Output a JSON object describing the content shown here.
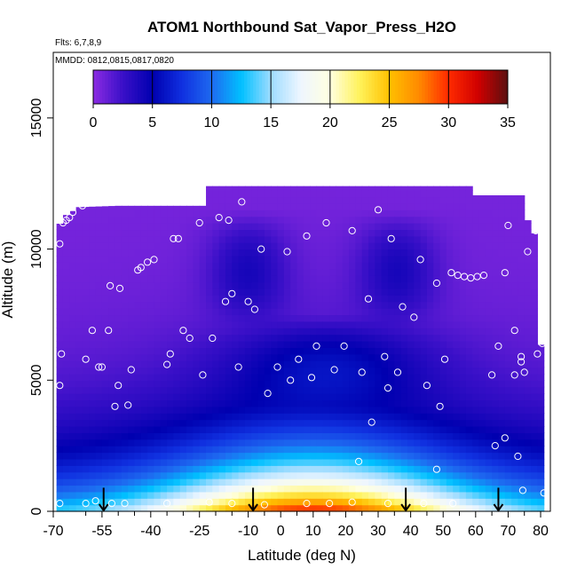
{
  "chart_data": {
    "type": "heatmap",
    "title": "ATOM1 Northbound Sat_Vapor_Press_H2O",
    "flights_note": "Flts: 6,7,8,9",
    "dates_note": "MMDD: 0812,0815,0817,0820",
    "xlabel": "Latitude (deg N)",
    "ylabel": "Altitude (m)",
    "xlim": [
      -70,
      83
    ],
    "ylim": [
      0,
      17500
    ],
    "x_ticks": [
      {
        "value": -70,
        "label": "-70"
      },
      {
        "value": -55,
        "label": "-55"
      },
      {
        "value": -40,
        "label": "-40"
      },
      {
        "value": -25,
        "label": "-25"
      },
      {
        "value": -10,
        "label": "-10"
      },
      {
        "value": 0,
        "label": "0"
      },
      {
        "value": 10,
        "label": "10"
      },
      {
        "value": 20,
        "label": "20"
      },
      {
        "value": 30,
        "label": "30"
      },
      {
        "value": 40,
        "label": "40"
      },
      {
        "value": 50,
        "label": "50"
      },
      {
        "value": 60,
        "label": "60"
      },
      {
        "value": 70,
        "label": "70"
      },
      {
        "value": 80,
        "label": "80"
      }
    ],
    "x_minor_ticks": [
      -60,
      -50,
      -45,
      -35,
      -30,
      -20,
      -15,
      -5,
      5,
      15,
      25,
      35,
      45,
      55,
      65,
      75
    ],
    "y_ticks": [
      {
        "value": 0,
        "label": "0"
      },
      {
        "value": 5000,
        "label": "5000"
      },
      {
        "value": 10000,
        "label": "10000"
      },
      {
        "value": 15000,
        "label": "15000"
      }
    ],
    "colorbar": {
      "min": 0,
      "max": 35,
      "ticks": [
        {
          "value": 0,
          "label": "0"
        },
        {
          "value": 5,
          "label": "5"
        },
        {
          "value": 10,
          "label": "10"
        },
        {
          "value": 15,
          "label": "15"
        },
        {
          "value": 20,
          "label": "20"
        },
        {
          "value": 25,
          "label": "25"
        },
        {
          "value": 30,
          "label": "30"
        },
        {
          "value": 35,
          "label": "35"
        }
      ],
      "stops": [
        {
          "value": 0,
          "color": "#8B2BE2"
        },
        {
          "value": 2.5,
          "color": "#3A10C8"
        },
        {
          "value": 5,
          "color": "#0000B0"
        },
        {
          "value": 7.5,
          "color": "#1030E0"
        },
        {
          "value": 10,
          "color": "#1E6AF0"
        },
        {
          "value": 12.5,
          "color": "#00C0FF"
        },
        {
          "value": 15,
          "color": "#9EDCFF"
        },
        {
          "value": 17.5,
          "color": "#EEF6FF"
        },
        {
          "value": 20,
          "color": "#FFFFE0"
        },
        {
          "value": 22.5,
          "color": "#FFF25A"
        },
        {
          "value": 25,
          "color": "#FFC000"
        },
        {
          "value": 27.5,
          "color": "#FF8A00"
        },
        {
          "value": 30,
          "color": "#FF2A00"
        },
        {
          "value": 32.5,
          "color": "#D00000"
        },
        {
          "value": 35,
          "color": "#5A1010"
        }
      ]
    },
    "coverage_top": [
      {
        "lat": -69,
        "alt": 10800
      },
      {
        "lat": -66,
        "alt": 11300
      },
      {
        "lat": -62,
        "alt": 11600
      },
      {
        "lat": -50,
        "alt": 11650
      },
      {
        "lat": -24,
        "alt": 11650
      },
      {
        "lat": -23,
        "alt": 12400
      },
      {
        "lat": 38,
        "alt": 12400
      },
      {
        "lat": 38.5,
        "alt": 12950
      },
      {
        "lat": 39,
        "alt": 12400
      },
      {
        "lat": 58,
        "alt": 12400
      },
      {
        "lat": 58,
        "alt": 12050
      },
      {
        "lat": 74,
        "alt": 12050
      },
      {
        "lat": 76,
        "alt": 11100
      },
      {
        "lat": 78,
        "alt": 10600
      },
      {
        "lat": 79,
        "alt": 6400
      },
      {
        "lat": 81,
        "alt": 6300
      },
      {
        "lat": 81,
        "alt": 400
      },
      {
        "lat": 76,
        "alt": 400
      },
      {
        "lat": 76,
        "alt": 0
      }
    ],
    "field_model": {
      "surface_peak_lat": 10,
      "surface_peak_value": 30.5,
      "surface_width_deg": 46,
      "surface_floor": 12,
      "scale_height_m": 2200,
      "dry_band": [
        {
          "lat": -10,
          "alt_min": 7000,
          "alt_max": 11500,
          "depth": 3
        },
        {
          "lat": 36,
          "alt_min": 7000,
          "alt_max": 11500,
          "depth": 3
        }
      ],
      "moist_band": {
        "lat": 15,
        "alt_min": 4000,
        "alt_max": 7500,
        "boost": 3
      }
    },
    "profile_arrows": [
      {
        "lat": -54.5,
        "alt_top": 900
      },
      {
        "lat": -8.5,
        "alt_top": 900
      },
      {
        "lat": 38.5,
        "alt_top": 900
      },
      {
        "lat": 67,
        "alt_top": 900
      }
    ],
    "sample_points": [
      {
        "lat": -68,
        "alt": 10200
      },
      {
        "lat": -67,
        "alt": 11000
      },
      {
        "lat": -66,
        "alt": 11100
      },
      {
        "lat": -65,
        "alt": 11200
      },
      {
        "lat": -64,
        "alt": 11400
      },
      {
        "lat": -61,
        "alt": 11650
      },
      {
        "lat": -67.5,
        "alt": 6000
      },
      {
        "lat": -68,
        "alt": 4800
      },
      {
        "lat": -68,
        "alt": 300
      },
      {
        "lat": -60,
        "alt": 5800
      },
      {
        "lat": -58,
        "alt": 6900
      },
      {
        "lat": -56,
        "alt": 5500
      },
      {
        "lat": -55,
        "alt": 5500
      },
      {
        "lat": -53,
        "alt": 6900
      },
      {
        "lat": -52.5,
        "alt": 8600
      },
      {
        "lat": -50,
        "alt": 4800
      },
      {
        "lat": -51,
        "alt": 4000
      },
      {
        "lat": -49.5,
        "alt": 8500
      },
      {
        "lat": -47,
        "alt": 4050
      },
      {
        "lat": -46,
        "alt": 5400
      },
      {
        "lat": -44,
        "alt": 9200
      },
      {
        "lat": -43,
        "alt": 9300
      },
      {
        "lat": -41,
        "alt": 9500
      },
      {
        "lat": -39,
        "alt": 9600
      },
      {
        "lat": -35,
        "alt": 5600
      },
      {
        "lat": -34,
        "alt": 6000
      },
      {
        "lat": -33,
        "alt": 10400
      },
      {
        "lat": -31.5,
        "alt": 10400
      },
      {
        "lat": -30,
        "alt": 6900
      },
      {
        "lat": -28,
        "alt": 6600
      },
      {
        "lat": -25,
        "alt": 11000
      },
      {
        "lat": -24,
        "alt": 5200
      },
      {
        "lat": -21,
        "alt": 6600
      },
      {
        "lat": -19,
        "alt": 11200
      },
      {
        "lat": -17,
        "alt": 8000
      },
      {
        "lat": -16,
        "alt": 11100
      },
      {
        "lat": -15,
        "alt": 8300
      },
      {
        "lat": -13,
        "alt": 5500
      },
      {
        "lat": -12,
        "alt": 11800
      },
      {
        "lat": -10,
        "alt": 8000
      },
      {
        "lat": -8,
        "alt": 7700
      },
      {
        "lat": -6,
        "alt": 10000
      },
      {
        "lat": -4,
        "alt": 4500
      },
      {
        "lat": -1,
        "alt": 5500
      },
      {
        "lat": 2,
        "alt": 9900
      },
      {
        "lat": 3,
        "alt": 5000
      },
      {
        "lat": 5.5,
        "alt": 5800
      },
      {
        "lat": 8,
        "alt": 10500
      },
      {
        "lat": 9.5,
        "alt": 5100
      },
      {
        "lat": 11,
        "alt": 6300
      },
      {
        "lat": 14,
        "alt": 11000
      },
      {
        "lat": 16.5,
        "alt": 5400
      },
      {
        "lat": 19.5,
        "alt": 6300
      },
      {
        "lat": 22,
        "alt": 10700
      },
      {
        "lat": 25,
        "alt": 5300
      },
      {
        "lat": 27,
        "alt": 8100
      },
      {
        "lat": 30,
        "alt": 11500
      },
      {
        "lat": 32,
        "alt": 5900
      },
      {
        "lat": 33,
        "alt": 4700
      },
      {
        "lat": 34,
        "alt": 10400
      },
      {
        "lat": 36,
        "alt": 5300
      },
      {
        "lat": 37.5,
        "alt": 7800
      },
      {
        "lat": 41,
        "alt": 7400
      },
      {
        "lat": 43,
        "alt": 9600
      },
      {
        "lat": 45,
        "alt": 4800
      },
      {
        "lat": 48,
        "alt": 8700
      },
      {
        "lat": 49,
        "alt": 4000
      },
      {
        "lat": 50.5,
        "alt": 5800
      },
      {
        "lat": 52.5,
        "alt": 9100
      },
      {
        "lat": 54.5,
        "alt": 9000
      },
      {
        "lat": 56.5,
        "alt": 8950
      },
      {
        "lat": 58.5,
        "alt": 8900
      },
      {
        "lat": 60.5,
        "alt": 8950
      },
      {
        "lat": 62.5,
        "alt": 9000
      },
      {
        "lat": 65,
        "alt": 5200
      },
      {
        "lat": 67,
        "alt": 6300
      },
      {
        "lat": 69,
        "alt": 9100
      },
      {
        "lat": 70,
        "alt": 10900
      },
      {
        "lat": 72,
        "alt": 6900
      },
      {
        "lat": 72,
        "alt": 5200
      },
      {
        "lat": 74,
        "alt": 5900
      },
      {
        "lat": 74,
        "alt": 5700
      },
      {
        "lat": 75,
        "alt": 5300
      },
      {
        "lat": 76,
        "alt": 9900
      },
      {
        "lat": 77,
        "alt": 11900
      },
      {
        "lat": 78.5,
        "alt": 10700
      },
      {
        "lat": 79,
        "alt": 6000
      },
      {
        "lat": 80.5,
        "alt": 6400
      },
      {
        "lat": 81,
        "alt": 700
      },
      {
        "lat": 66,
        "alt": 2500
      },
      {
        "lat": 69,
        "alt": 2800
      },
      {
        "lat": 73,
        "alt": 2100
      },
      {
        "lat": 74.5,
        "alt": 800
      },
      {
        "lat": 48,
        "alt": 1600
      },
      {
        "lat": 24,
        "alt": 1900
      },
      {
        "lat": 28,
        "alt": 3400
      },
      {
        "lat": -60,
        "alt": 300
      },
      {
        "lat": -57,
        "alt": 400
      },
      {
        "lat": -52,
        "alt": 300
      },
      {
        "lat": -48,
        "alt": 300
      },
      {
        "lat": -35,
        "alt": 300
      },
      {
        "lat": -22,
        "alt": 350
      },
      {
        "lat": -15,
        "alt": 300
      },
      {
        "lat": -5,
        "alt": 250
      },
      {
        "lat": 8,
        "alt": 300
      },
      {
        "lat": 15,
        "alt": 300
      },
      {
        "lat": 22,
        "alt": 350
      },
      {
        "lat": 33,
        "alt": 300
      },
      {
        "lat": 44,
        "alt": 300
      },
      {
        "lat": 53,
        "alt": 300
      }
    ]
  }
}
